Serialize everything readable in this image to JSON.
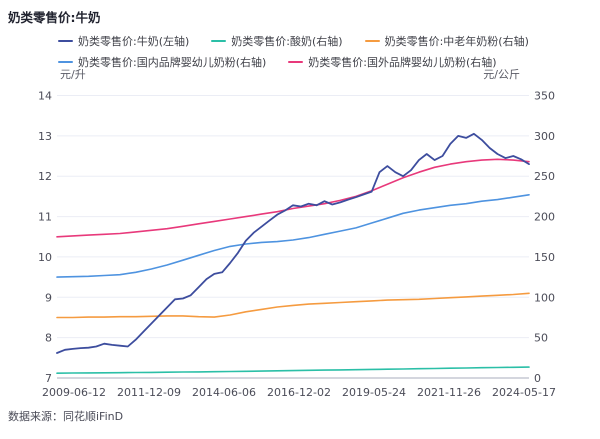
{
  "page": {
    "title": "奶类零售价:牛奶",
    "source": "数据来源：同花顺iFinD"
  },
  "chart_data": {
    "type": "line",
    "title": "奶类零售价:牛奶",
    "grid": true,
    "legend_position": "top",
    "left_axis": {
      "unit": "元/升",
      "min": 7,
      "max": 14,
      "ticks": [
        "14",
        "13",
        "12",
        "11",
        "10",
        "9",
        "8",
        "7"
      ]
    },
    "right_axis": {
      "unit": "元/公斤",
      "min": 0,
      "max": 350,
      "ticks": [
        "350",
        "300",
        "250",
        "200",
        "150",
        "100",
        "50",
        "0"
      ]
    },
    "x_ticks": [
      "2009-06-12",
      "2011-12-09",
      "2014-06-06",
      "2016-12-02",
      "2019-05-24",
      "2021-11-26",
      "2024-05-17"
    ],
    "colors": {
      "milk": "#3D4D9E",
      "yogurt": "#2BBFA7",
      "senior_powder": "#F59B40",
      "domestic_infant": "#4E93E0",
      "foreign_infant": "#E8397B",
      "gridline": "#ebedf5",
      "axis_line": "#a9adbd"
    },
    "legend_rows": [
      [
        0,
        1,
        2
      ],
      [
        3,
        4
      ]
    ],
    "draw_order": [
      1,
      2,
      3,
      4,
      0
    ],
    "series": [
      {
        "name": "奶类零售价:牛奶(左轴)",
        "axis": "left",
        "unit": "元/升",
        "color": "#3D4D9E",
        "width": 1.8,
        "values": [
          7.62,
          7.7,
          7.72,
          7.74,
          7.75,
          7.78,
          7.85,
          7.82,
          7.8,
          7.78,
          7.95,
          8.15,
          8.35,
          8.55,
          8.75,
          8.95,
          8.97,
          9.05,
          9.25,
          9.45,
          9.58,
          9.62,
          9.85,
          10.1,
          10.4,
          10.6,
          10.75,
          10.9,
          11.05,
          11.15,
          11.28,
          11.25,
          11.32,
          11.28,
          11.38,
          11.3,
          11.35,
          11.42,
          11.48,
          11.55,
          11.62,
          12.1,
          12.25,
          12.1,
          12.0,
          12.15,
          12.4,
          12.55,
          12.4,
          12.5,
          12.8,
          13.0,
          12.95,
          13.05,
          12.9,
          12.7,
          12.55,
          12.45,
          12.5,
          12.42,
          12.3
        ]
      },
      {
        "name": "奶类零售价:酸奶(右轴)",
        "axis": "right",
        "unit": "元/公斤",
        "color": "#2BBFA7",
        "width": 1.6,
        "values": [
          6.0,
          6.2,
          6.3,
          6.5,
          6.6,
          6.8,
          7.0,
          7.2,
          7.4,
          7.6,
          7.8,
          8.0,
          8.3,
          8.6,
          8.9,
          9.2,
          9.5,
          9.8,
          10.0,
          10.3,
          10.6,
          10.9,
          11.2,
          11.5,
          11.8,
          12.1,
          12.4,
          12.7,
          13.0,
          13.2,
          13.5
        ]
      },
      {
        "name": "奶类零售价:中老年奶粉(右轴)",
        "axis": "right",
        "unit": "元/公斤",
        "color": "#F59B40",
        "width": 1.6,
        "values": [
          75,
          75,
          75.5,
          75.5,
          76,
          76,
          76.5,
          77,
          77,
          76,
          75.5,
          78,
          82,
          85,
          88,
          90,
          91.5,
          92.5,
          93.5,
          94.5,
          95.5,
          96.5,
          97,
          97.5,
          98.5,
          99.5,
          100.5,
          101.5,
          102.5,
          103.5,
          105
        ]
      },
      {
        "name": "奶类零售价:国内品牌婴幼儿奶粉(右轴)",
        "axis": "right",
        "unit": "元/公斤",
        "color": "#4E93E0",
        "width": 1.6,
        "values": [
          125,
          125.5,
          126,
          127,
          128,
          131,
          135,
          140,
          146,
          152,
          158,
          163,
          166,
          168,
          169,
          171,
          174,
          178,
          182,
          186,
          192,
          198,
          204,
          208,
          211,
          214,
          216,
          219,
          221,
          224,
          227
        ]
      },
      {
        "name": "奶类零售价:国外品牌婴幼儿奶粉(右轴)",
        "axis": "right",
        "unit": "元/公斤",
        "color": "#E8397B",
        "width": 1.6,
        "values": [
          175,
          176,
          177,
          178,
          179,
          181,
          183,
          185,
          188,
          191,
          194,
          197,
          200,
          203,
          206,
          210,
          213,
          216,
          220,
          225,
          232,
          240,
          248,
          255,
          261,
          265,
          268,
          270,
          271,
          270,
          268
        ]
      }
    ]
  }
}
